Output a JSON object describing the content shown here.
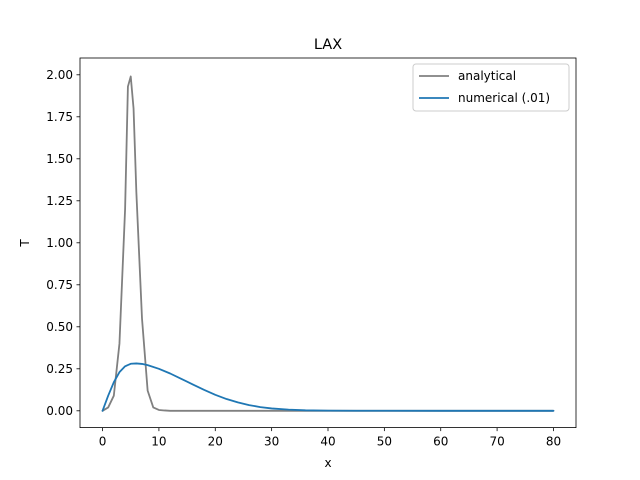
{
  "chart_data": {
    "type": "line",
    "title": "LAX",
    "xlabel": "x",
    "ylabel": "T",
    "xlim": [
      -4,
      84
    ],
    "ylim": [
      -0.1,
      2.1
    ],
    "xticks": [
      0,
      10,
      20,
      30,
      40,
      50,
      60,
      70,
      80
    ],
    "yticks": [
      0.0,
      0.25,
      0.5,
      0.75,
      1.0,
      1.25,
      1.5,
      1.75,
      2.0
    ],
    "xtick_labels": [
      "0",
      "10",
      "20",
      "30",
      "40",
      "50",
      "60",
      "70",
      "80"
    ],
    "ytick_labels": [
      "0.00",
      "0.25",
      "0.50",
      "0.75",
      "1.00",
      "1.25",
      "1.50",
      "1.75",
      "2.00"
    ],
    "grid": false,
    "legend_position": "top-right",
    "series": [
      {
        "name": "analytical",
        "color": "#808080",
        "x": [
          0,
          1,
          2,
          3,
          4,
          4.5,
          5,
          5.5,
          6,
          7,
          8,
          9,
          10,
          11,
          12,
          14,
          20,
          30,
          40,
          50,
          60,
          70,
          80
        ],
        "y": [
          0.0,
          0.02,
          0.09,
          0.4,
          1.2,
          1.93,
          1.99,
          1.8,
          1.3,
          0.55,
          0.12,
          0.02,
          0.005,
          0.002,
          0.0,
          0.0,
          0.0,
          0.0,
          0.0,
          0.0,
          0.0,
          0.0,
          0.0
        ]
      },
      {
        "name": "numerical (.01)",
        "color": "#1f77b4",
        "x": [
          0,
          1,
          2,
          3,
          4,
          5,
          6,
          7,
          8,
          10,
          12,
          14,
          16,
          18,
          20,
          22,
          24,
          26,
          28,
          30,
          33,
          36,
          40,
          45,
          50,
          60,
          70,
          80
        ],
        "y": [
          0.0,
          0.09,
          0.17,
          0.23,
          0.265,
          0.28,
          0.282,
          0.279,
          0.272,
          0.25,
          0.222,
          0.19,
          0.157,
          0.125,
          0.095,
          0.07,
          0.05,
          0.034,
          0.022,
          0.014,
          0.007,
          0.003,
          0.001,
          0.0003,
          0.0001,
          0.0,
          0.0,
          0.0
        ]
      }
    ]
  }
}
